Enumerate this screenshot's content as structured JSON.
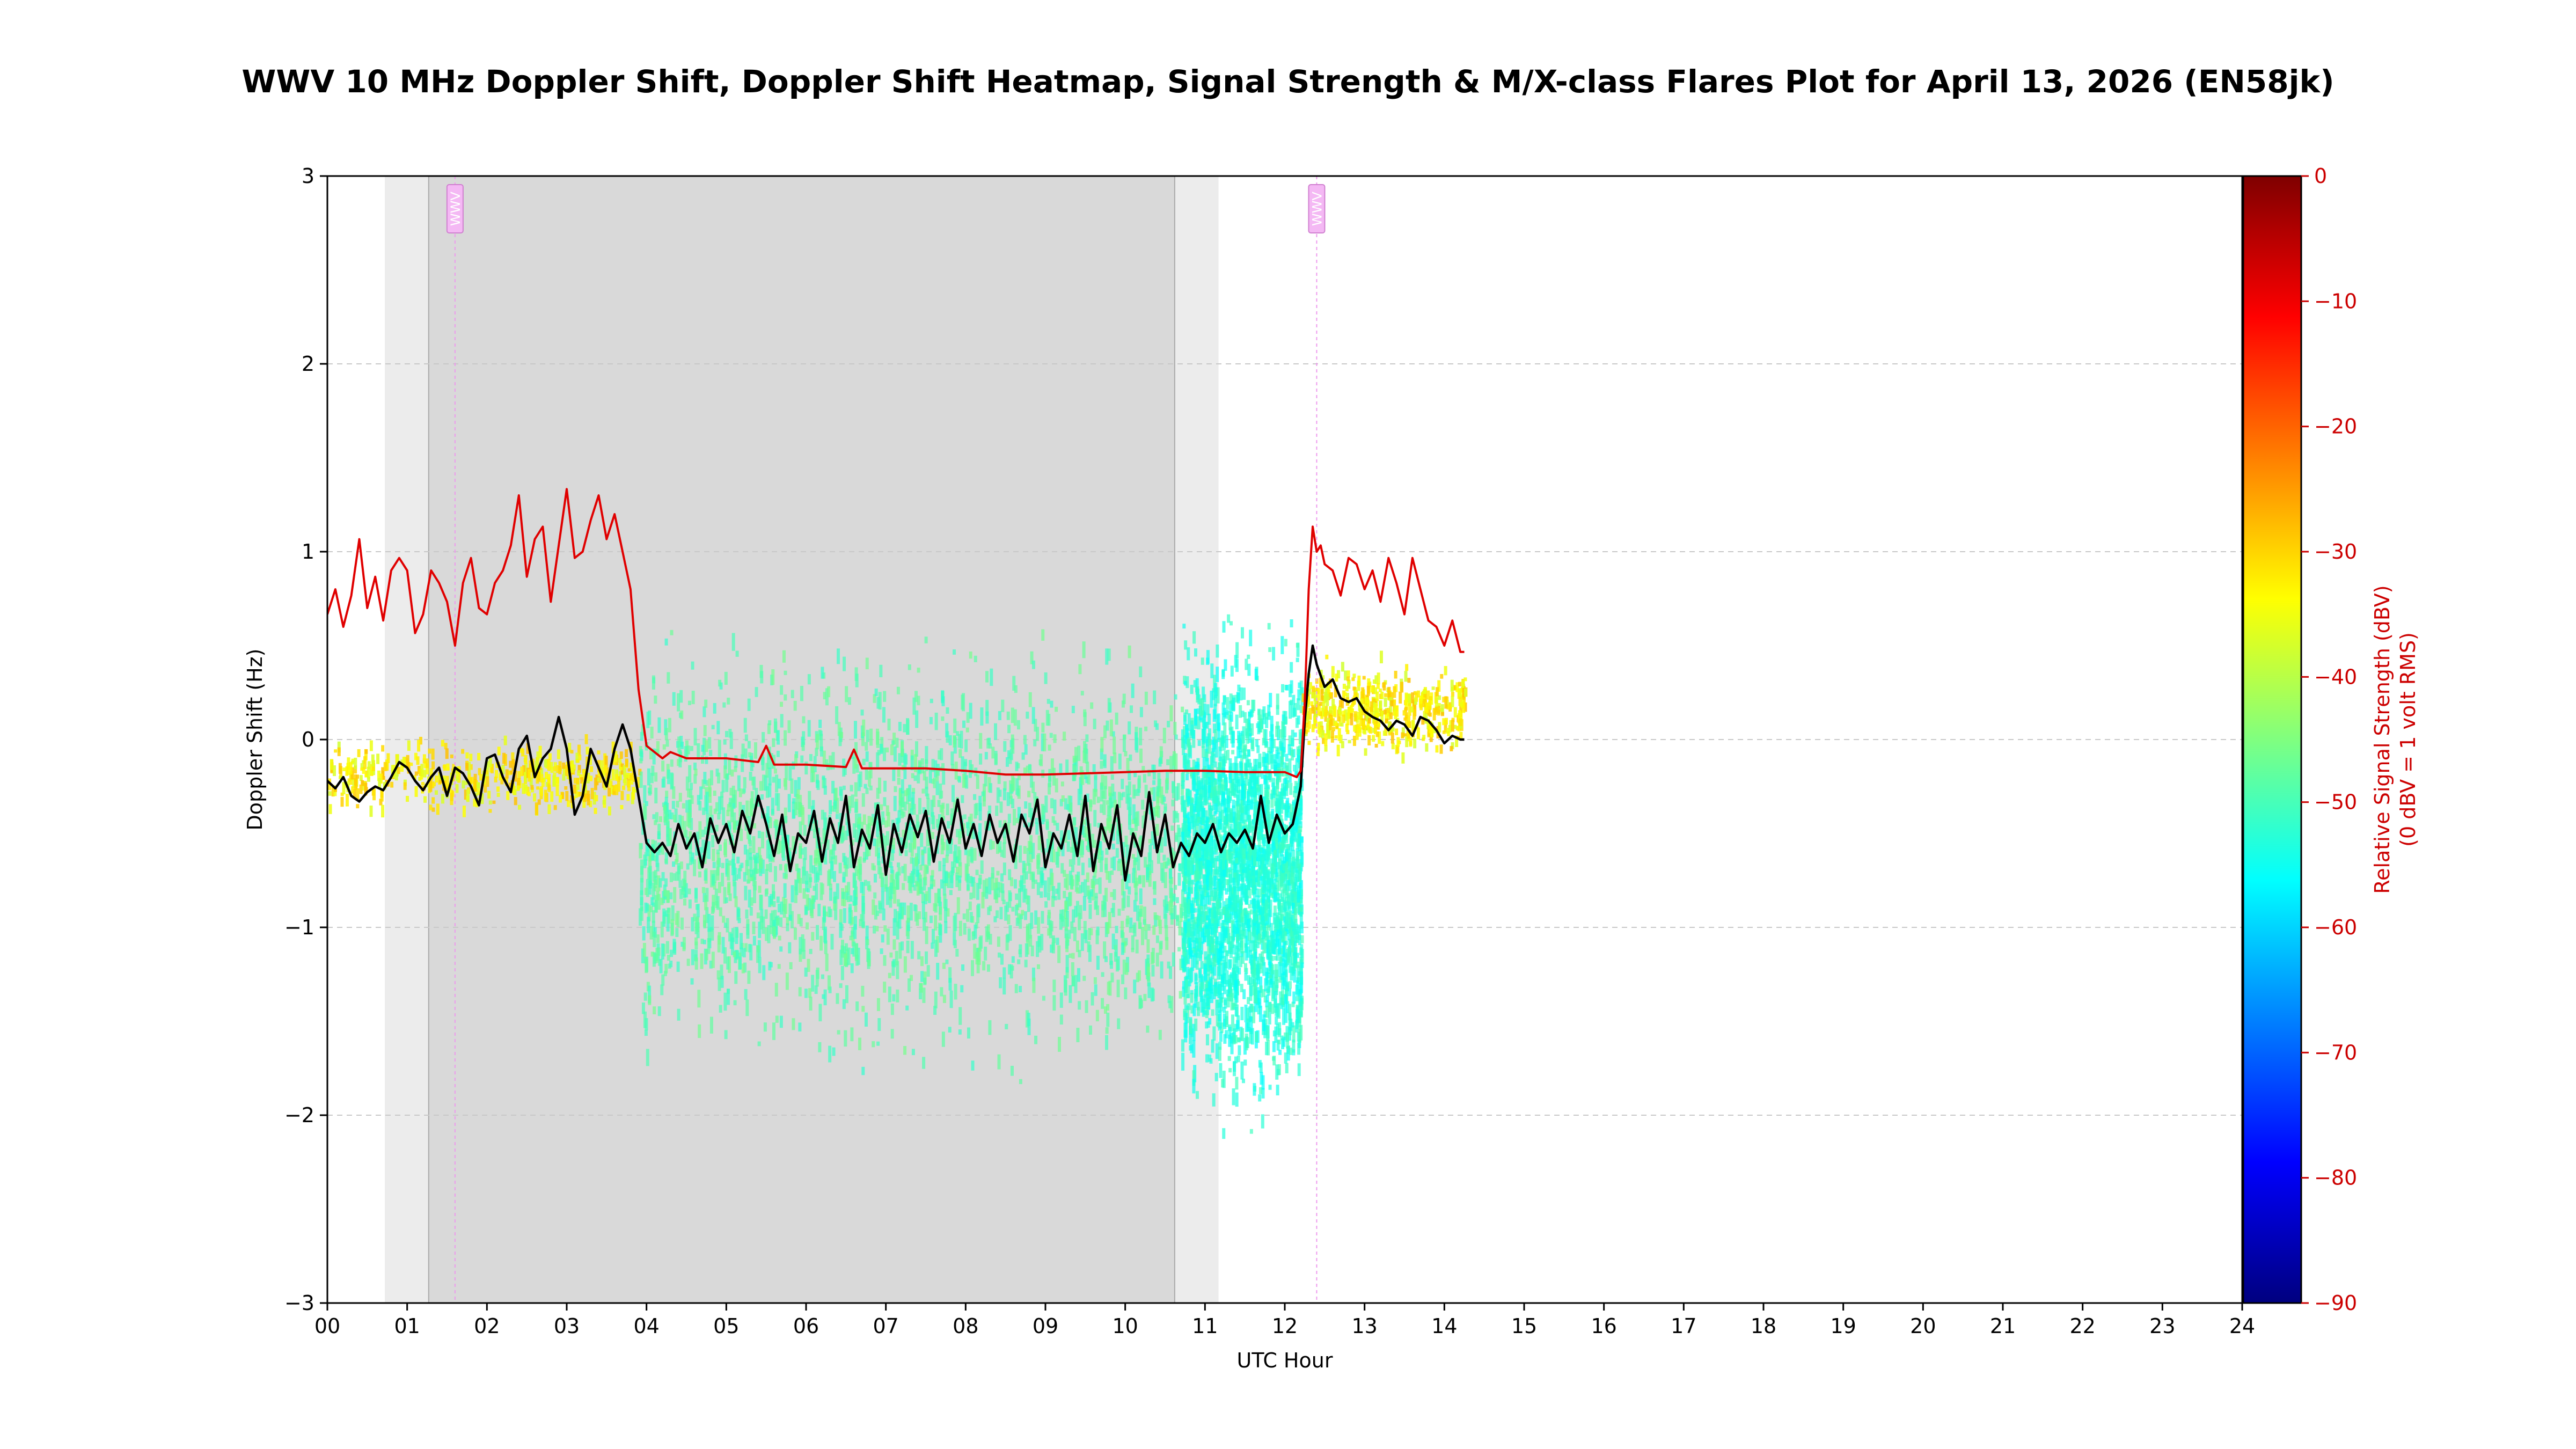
{
  "chart_data": {
    "type": "line",
    "title": "WWV 10 MHz Doppler Shift, Doppler Shift Heatmap, Signal Strength & M/X-class Flares Plot for April 13, 2026 (EN58jk)",
    "xlabel": "UTC Hour",
    "ylabel": "Doppler Shift (Hz)",
    "y2label_line1": "Relative Signal Strength (dBV)",
    "y2label_line2": "(0 dBV = 1 volt RMS)",
    "xlim": [
      0,
      24
    ],
    "ylim": [
      -3,
      3
    ],
    "y2lim": [
      -90,
      0
    ],
    "x_ticks": [
      "00",
      "01",
      "02",
      "03",
      "04",
      "05",
      "06",
      "07",
      "08",
      "09",
      "10",
      "11",
      "12",
      "13",
      "14",
      "15",
      "16",
      "17",
      "18",
      "19",
      "20",
      "21",
      "22",
      "23",
      "24"
    ],
    "y_ticks": [
      "−3",
      "−2",
      "−1",
      "0",
      "1",
      "2",
      "3"
    ],
    "y2_ticks": [
      "0",
      "−10",
      "−20",
      "−30",
      "−40",
      "−50",
      "−60",
      "−70",
      "−80",
      "−90"
    ],
    "grid": true,
    "colors": {
      "doppler": "#000000",
      "signal": "#e00000",
      "flare_marker": "#ee99ee",
      "night_shade": "#d9d9d9",
      "twilight_shade": "#ececec",
      "right_axis": "#cc0000"
    },
    "shaded_regions": [
      {
        "kind": "twilight",
        "x0": 0.72,
        "x1": 1.27
      },
      {
        "kind": "night",
        "x0": 1.27,
        "x1": 10.62
      },
      {
        "kind": "twilight",
        "x0": 10.62,
        "x1": 11.17
      }
    ],
    "flare_markers": [
      {
        "x": 1.6,
        "label": "WWV"
      },
      {
        "x": 12.4,
        "label": "WWV"
      }
    ],
    "series": [
      {
        "key": "doppler",
        "axis": "left",
        "unit": "Hz",
        "points": [
          [
            0.0,
            -0.22
          ],
          [
            0.1,
            -0.26
          ],
          [
            0.2,
            -0.2
          ],
          [
            0.3,
            -0.3
          ],
          [
            0.4,
            -0.33
          ],
          [
            0.5,
            -0.28
          ],
          [
            0.6,
            -0.25
          ],
          [
            0.7,
            -0.27
          ],
          [
            0.8,
            -0.2
          ],
          [
            0.9,
            -0.12
          ],
          [
            1.0,
            -0.15
          ],
          [
            1.1,
            -0.22
          ],
          [
            1.2,
            -0.27
          ],
          [
            1.3,
            -0.2
          ],
          [
            1.4,
            -0.15
          ],
          [
            1.5,
            -0.3
          ],
          [
            1.6,
            -0.15
          ],
          [
            1.7,
            -0.18
          ],
          [
            1.8,
            -0.25
          ],
          [
            1.9,
            -0.35
          ],
          [
            2.0,
            -0.1
          ],
          [
            2.1,
            -0.08
          ],
          [
            2.2,
            -0.2
          ],
          [
            2.3,
            -0.28
          ],
          [
            2.4,
            -0.05
          ],
          [
            2.5,
            0.02
          ],
          [
            2.6,
            -0.2
          ],
          [
            2.7,
            -0.1
          ],
          [
            2.8,
            -0.05
          ],
          [
            2.9,
            0.12
          ],
          [
            3.0,
            -0.05
          ],
          [
            3.1,
            -0.4
          ],
          [
            3.2,
            -0.3
          ],
          [
            3.3,
            -0.05
          ],
          [
            3.4,
            -0.15
          ],
          [
            3.5,
            -0.25
          ],
          [
            3.6,
            -0.05
          ],
          [
            3.7,
            0.08
          ],
          [
            3.8,
            -0.05
          ],
          [
            3.9,
            -0.3
          ],
          [
            4.0,
            -0.55
          ],
          [
            4.1,
            -0.6
          ],
          [
            4.2,
            -0.55
          ],
          [
            4.3,
            -0.62
          ],
          [
            4.4,
            -0.45
          ],
          [
            4.5,
            -0.58
          ],
          [
            4.6,
            -0.5
          ],
          [
            4.7,
            -0.68
          ],
          [
            4.8,
            -0.42
          ],
          [
            4.9,
            -0.55
          ],
          [
            5.0,
            -0.45
          ],
          [
            5.1,
            -0.6
          ],
          [
            5.2,
            -0.38
          ],
          [
            5.3,
            -0.5
          ],
          [
            5.4,
            -0.3
          ],
          [
            5.5,
            -0.45
          ],
          [
            5.6,
            -0.62
          ],
          [
            5.7,
            -0.4
          ],
          [
            5.8,
            -0.7
          ],
          [
            5.9,
            -0.5
          ],
          [
            6.0,
            -0.55
          ],
          [
            6.1,
            -0.38
          ],
          [
            6.2,
            -0.65
          ],
          [
            6.3,
            -0.42
          ],
          [
            6.4,
            -0.55
          ],
          [
            6.5,
            -0.3
          ],
          [
            6.6,
            -0.68
          ],
          [
            6.7,
            -0.48
          ],
          [
            6.8,
            -0.58
          ],
          [
            6.9,
            -0.35
          ],
          [
            7.0,
            -0.72
          ],
          [
            7.1,
            -0.45
          ],
          [
            7.2,
            -0.6
          ],
          [
            7.3,
            -0.4
          ],
          [
            7.4,
            -0.52
          ],
          [
            7.5,
            -0.38
          ],
          [
            7.6,
            -0.65
          ],
          [
            7.7,
            -0.42
          ],
          [
            7.8,
            -0.55
          ],
          [
            7.9,
            -0.32
          ],
          [
            8.0,
            -0.58
          ],
          [
            8.1,
            -0.45
          ],
          [
            8.2,
            -0.62
          ],
          [
            8.3,
            -0.4
          ],
          [
            8.4,
            -0.55
          ],
          [
            8.5,
            -0.45
          ],
          [
            8.6,
            -0.65
          ],
          [
            8.7,
            -0.4
          ],
          [
            8.8,
            -0.5
          ],
          [
            8.9,
            -0.32
          ],
          [
            9.0,
            -0.68
          ],
          [
            9.1,
            -0.5
          ],
          [
            9.2,
            -0.58
          ],
          [
            9.3,
            -0.4
          ],
          [
            9.4,
            -0.62
          ],
          [
            9.5,
            -0.3
          ],
          [
            9.6,
            -0.7
          ],
          [
            9.7,
            -0.45
          ],
          [
            9.8,
            -0.58
          ],
          [
            9.9,
            -0.35
          ],
          [
            10.0,
            -0.75
          ],
          [
            10.1,
            -0.5
          ],
          [
            10.2,
            -0.62
          ],
          [
            10.3,
            -0.28
          ],
          [
            10.4,
            -0.6
          ],
          [
            10.5,
            -0.4
          ],
          [
            10.6,
            -0.68
          ],
          [
            10.7,
            -0.55
          ],
          [
            10.8,
            -0.62
          ],
          [
            10.9,
            -0.5
          ],
          [
            11.0,
            -0.55
          ],
          [
            11.1,
            -0.45
          ],
          [
            11.2,
            -0.6
          ],
          [
            11.3,
            -0.5
          ],
          [
            11.4,
            -0.55
          ],
          [
            11.5,
            -0.48
          ],
          [
            11.6,
            -0.58
          ],
          [
            11.7,
            -0.3
          ],
          [
            11.8,
            -0.55
          ],
          [
            11.9,
            -0.4
          ],
          [
            12.0,
            -0.5
          ],
          [
            12.1,
            -0.45
          ],
          [
            12.2,
            -0.25
          ],
          [
            12.25,
            0.1
          ],
          [
            12.3,
            0.35
          ],
          [
            12.35,
            0.5
          ],
          [
            12.4,
            0.4
          ],
          [
            12.5,
            0.28
          ],
          [
            12.6,
            0.32
          ],
          [
            12.7,
            0.22
          ],
          [
            12.8,
            0.2
          ],
          [
            12.9,
            0.22
          ],
          [
            13.0,
            0.15
          ],
          [
            13.1,
            0.12
          ],
          [
            13.2,
            0.1
          ],
          [
            13.3,
            0.05
          ],
          [
            13.4,
            0.1
          ],
          [
            13.5,
            0.08
          ],
          [
            13.6,
            0.02
          ],
          [
            13.7,
            0.12
          ],
          [
            13.8,
            0.1
          ],
          [
            13.9,
            0.05
          ],
          [
            14.0,
            -0.02
          ],
          [
            14.1,
            0.02
          ],
          [
            14.2,
            0.0
          ],
          [
            14.25,
            0.0
          ]
        ]
      },
      {
        "key": "signal",
        "axis": "right",
        "unit": "dBV",
        "points": [
          [
            0.0,
            -35.0
          ],
          [
            0.1,
            -33.0
          ],
          [
            0.2,
            -36.0
          ],
          [
            0.3,
            -33.5
          ],
          [
            0.4,
            -29.0
          ],
          [
            0.5,
            -34.5
          ],
          [
            0.6,
            -32.0
          ],
          [
            0.7,
            -35.5
          ],
          [
            0.8,
            -31.5
          ],
          [
            0.9,
            -30.5
          ],
          [
            1.0,
            -31.5
          ],
          [
            1.1,
            -36.5
          ],
          [
            1.2,
            -35.0
          ],
          [
            1.3,
            -31.5
          ],
          [
            1.4,
            -32.5
          ],
          [
            1.5,
            -34.0
          ],
          [
            1.6,
            -37.5
          ],
          [
            1.7,
            -32.5
          ],
          [
            1.8,
            -30.5
          ],
          [
            1.9,
            -34.5
          ],
          [
            2.0,
            -35.0
          ],
          [
            2.1,
            -32.5
          ],
          [
            2.2,
            -31.5
          ],
          [
            2.3,
            -29.5
          ],
          [
            2.4,
            -25.5
          ],
          [
            2.5,
            -32.0
          ],
          [
            2.6,
            -29.0
          ],
          [
            2.7,
            -28.0
          ],
          [
            2.8,
            -34.0
          ],
          [
            2.9,
            -29.5
          ],
          [
            3.0,
            -25.0
          ],
          [
            3.1,
            -30.5
          ],
          [
            3.2,
            -30.0
          ],
          [
            3.3,
            -27.5
          ],
          [
            3.4,
            -25.5
          ],
          [
            3.5,
            -29.0
          ],
          [
            3.6,
            -27.0
          ],
          [
            3.7,
            -30.0
          ],
          [
            3.8,
            -33.0
          ],
          [
            3.9,
            -41.0
          ],
          [
            4.0,
            -45.5
          ],
          [
            4.1,
            -46.0
          ],
          [
            4.2,
            -46.5
          ],
          [
            4.3,
            -46.0
          ],
          [
            4.5,
            -46.5
          ],
          [
            5.0,
            -46.5
          ],
          [
            5.4,
            -46.8
          ],
          [
            5.5,
            -45.5
          ],
          [
            5.6,
            -47.0
          ],
          [
            6.0,
            -47.0
          ],
          [
            6.5,
            -47.2
          ],
          [
            6.6,
            -45.8
          ],
          [
            6.7,
            -47.3
          ],
          [
            7.0,
            -47.3
          ],
          [
            7.5,
            -47.3
          ],
          [
            8.0,
            -47.5
          ],
          [
            8.5,
            -47.8
          ],
          [
            9.0,
            -47.8
          ],
          [
            9.5,
            -47.7
          ],
          [
            10.0,
            -47.6
          ],
          [
            10.5,
            -47.5
          ],
          [
            11.0,
            -47.5
          ],
          [
            11.5,
            -47.6
          ],
          [
            12.0,
            -47.6
          ],
          [
            12.15,
            -48.0
          ],
          [
            12.2,
            -47.5
          ],
          [
            12.25,
            -42.0
          ],
          [
            12.3,
            -33.0
          ],
          [
            12.35,
            -28.0
          ],
          [
            12.4,
            -30.0
          ],
          [
            12.45,
            -29.5
          ],
          [
            12.5,
            -31.0
          ],
          [
            12.6,
            -31.5
          ],
          [
            12.7,
            -33.5
          ],
          [
            12.8,
            -30.5
          ],
          [
            12.9,
            -31.0
          ],
          [
            13.0,
            -33.0
          ],
          [
            13.1,
            -31.5
          ],
          [
            13.2,
            -34.0
          ],
          [
            13.3,
            -30.5
          ],
          [
            13.4,
            -32.5
          ],
          [
            13.5,
            -35.0
          ],
          [
            13.6,
            -30.5
          ],
          [
            13.7,
            -33.0
          ],
          [
            13.8,
            -35.5
          ],
          [
            13.9,
            -36.0
          ],
          [
            14.0,
            -37.5
          ],
          [
            14.1,
            -35.5
          ],
          [
            14.2,
            -38.0
          ],
          [
            14.25,
            -38.0
          ]
        ]
      }
    ],
    "heatmap": {
      "colormap": "jet",
      "value_range": [
        -90,
        0
      ],
      "bins": [
        {
          "x0": 0.0,
          "x1": 3.9,
          "y": -0.2,
          "spread": 0.25,
          "dbv_from": -38,
          "dbv_to": -28
        },
        {
          "x0": 3.9,
          "x1": 10.7,
          "y": -0.6,
          "spread": 1.3,
          "dbv_from": -52,
          "dbv_to": -46
        },
        {
          "x0": 10.7,
          "x1": 12.2,
          "y": -0.7,
          "spread": 1.5,
          "dbv_from": -56,
          "dbv_to": -50
        },
        {
          "x0": 12.2,
          "x1": 14.25,
          "y": 0.15,
          "spread": 0.3,
          "dbv_from": -38,
          "dbv_to": -28
        }
      ]
    }
  }
}
